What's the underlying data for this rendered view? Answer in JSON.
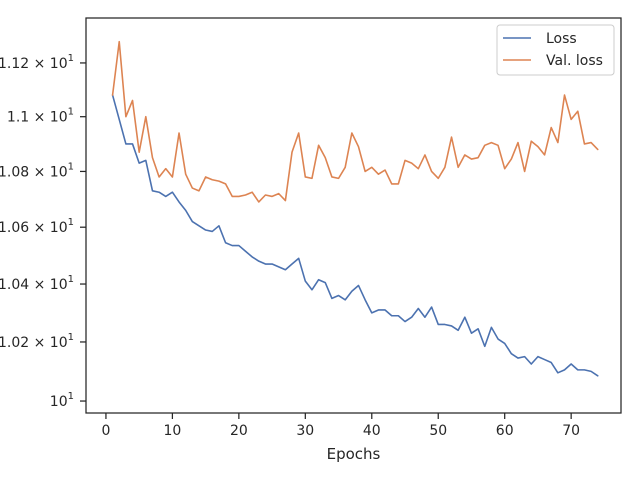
{
  "chart_data": {
    "type": "line",
    "xlabel": "Epochs",
    "ylabel": "",
    "yscale": "log",
    "xlim": [
      -3,
      77.5
    ],
    "ylim": [
      9.96,
      11.37
    ],
    "grid": false,
    "legend_position": "top-right",
    "x_ticks": [
      {
        "value": 0,
        "label": "0"
      },
      {
        "value": 10,
        "label": "10"
      },
      {
        "value": 20,
        "label": "20"
      },
      {
        "value": 30,
        "label": "30"
      },
      {
        "value": 40,
        "label": "40"
      },
      {
        "value": 50,
        "label": "50"
      },
      {
        "value": 60,
        "label": "60"
      },
      {
        "value": 70,
        "label": "70"
      }
    ],
    "y_ticks": [
      {
        "value": 10.0,
        "base": "10",
        "mant": "",
        "exp": "1"
      },
      {
        "value": 10.2,
        "base": "10",
        "mant": "1.02",
        "exp": "1"
      },
      {
        "value": 10.4,
        "base": "10",
        "mant": "1.04",
        "exp": "1"
      },
      {
        "value": 10.6,
        "base": "10",
        "mant": "1.06",
        "exp": "1"
      },
      {
        "value": 10.8,
        "base": "10",
        "mant": "1.08",
        "exp": "1"
      },
      {
        "value": 11.0,
        "base": "10",
        "mant": "1.1",
        "exp": "1"
      },
      {
        "value": 11.2,
        "base": "10",
        "mant": "1.12",
        "exp": "1"
      }
    ],
    "x": [
      1,
      2,
      3,
      4,
      5,
      6,
      7,
      8,
      9,
      10,
      11,
      12,
      13,
      14,
      15,
      16,
      17,
      18,
      19,
      20,
      21,
      22,
      23,
      24,
      25,
      26,
      27,
      28,
      29,
      30,
      31,
      32,
      33,
      34,
      35,
      36,
      37,
      38,
      39,
      40,
      41,
      42,
      43,
      44,
      45,
      46,
      47,
      48,
      49,
      50,
      51,
      52,
      53,
      54,
      55,
      56,
      57,
      58,
      59,
      60,
      61,
      62,
      63,
      64,
      65,
      66,
      67,
      68,
      69,
      70,
      71,
      72,
      73,
      74
    ],
    "series": [
      {
        "name": "Loss",
        "color": "#4c72b0",
        "values": [
          11.08,
          10.99,
          10.9,
          10.9,
          10.83,
          10.84,
          10.73,
          10.725,
          10.71,
          10.725,
          10.69,
          10.66,
          10.62,
          10.605,
          10.59,
          10.585,
          10.605,
          10.545,
          10.535,
          10.535,
          10.515,
          10.495,
          10.48,
          10.47,
          10.47,
          10.46,
          10.45,
          10.47,
          10.49,
          10.41,
          10.38,
          10.415,
          10.405,
          10.35,
          10.36,
          10.345,
          10.375,
          10.395,
          10.345,
          10.3,
          10.31,
          10.31,
          10.29,
          10.29,
          10.27,
          10.285,
          10.315,
          10.285,
          10.32,
          10.26,
          10.26,
          10.255,
          10.24,
          10.285,
          10.23,
          10.245,
          10.185,
          10.25,
          10.21,
          10.195,
          10.16,
          10.145,
          10.15,
          10.125,
          10.15,
          10.14,
          10.13,
          10.095,
          10.105,
          10.125,
          10.105,
          10.105,
          10.1,
          10.085
        ]
      },
      {
        "name": "Val. loss",
        "color": "#dd8452",
        "values": [
          11.08,
          11.28,
          11.0,
          11.06,
          10.87,
          11.0,
          10.85,
          10.78,
          10.81,
          10.78,
          10.94,
          10.79,
          10.74,
          10.73,
          10.78,
          10.77,
          10.765,
          10.755,
          10.71,
          10.71,
          10.715,
          10.725,
          10.69,
          10.715,
          10.71,
          10.72,
          10.695,
          10.87,
          10.94,
          10.78,
          10.775,
          10.895,
          10.85,
          10.78,
          10.775,
          10.815,
          10.94,
          10.89,
          10.8,
          10.815,
          10.79,
          10.805,
          10.755,
          10.755,
          10.84,
          10.83,
          10.81,
          10.86,
          10.8,
          10.775,
          10.815,
          10.925,
          10.815,
          10.86,
          10.845,
          10.85,
          10.895,
          10.905,
          10.895,
          10.81,
          10.845,
          10.905,
          10.8,
          10.91,
          10.89,
          10.86,
          10.96,
          10.905,
          11.08,
          10.99,
          11.02,
          10.9,
          10.905,
          10.88
        ]
      }
    ]
  }
}
